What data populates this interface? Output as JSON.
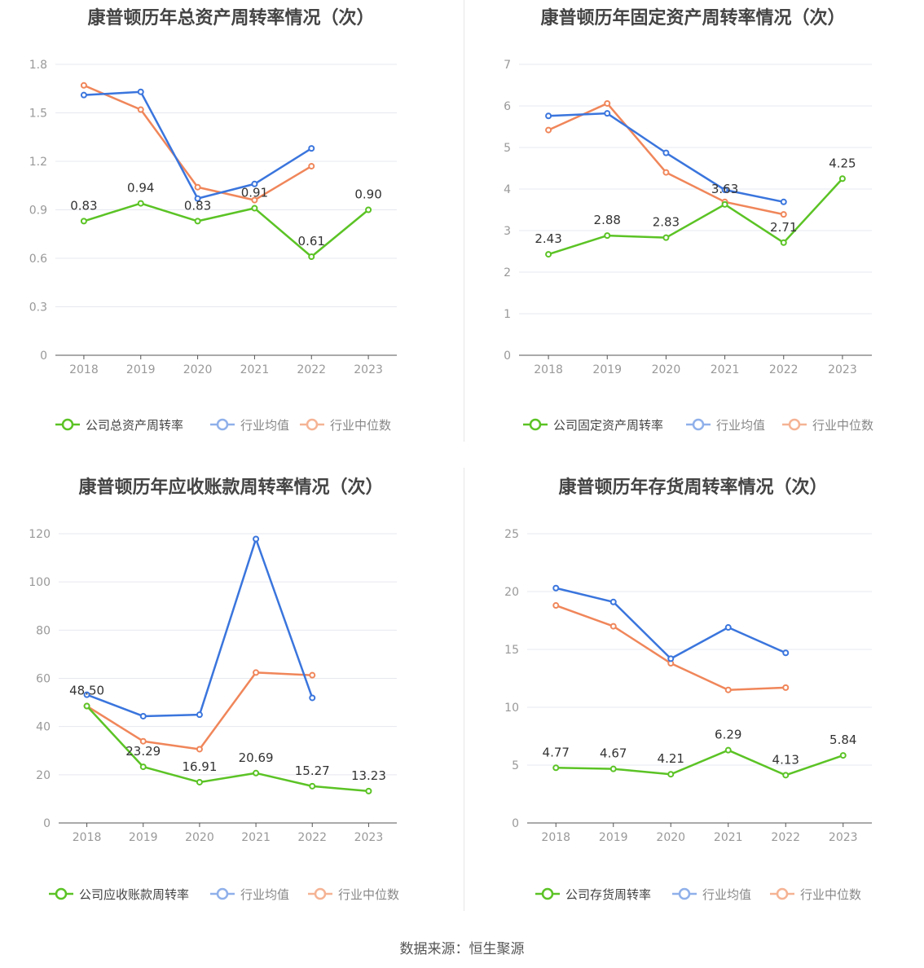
{
  "footer": "数据来源：恒生聚源",
  "colors": {
    "company": "#5bc325",
    "average": "#3a75dd",
    "median": "#f0865a",
    "axis": "#999999",
    "grid": "#e6e8f0",
    "title": "#444444"
  },
  "chart_data": [
    {
      "type": "line",
      "title": "康普顿历年总资产周转率情况（次）",
      "x": [
        "2018",
        "2019",
        "2020",
        "2021",
        "2022",
        "2023"
      ],
      "ylim": [
        0,
        1.8
      ],
      "yticks": [
        "0",
        "0.3",
        "0.6",
        "0.9",
        "1.2",
        "1.5",
        "1.8"
      ],
      "grid": true,
      "legend_placement": "bottom",
      "series": [
        {
          "name": "公司总资产周转率",
          "values": [
            0.83,
            0.94,
            0.83,
            0.91,
            0.61,
            0.9
          ],
          "labels": [
            "0.83",
            "0.94",
            "0.83",
            "0.91",
            "0.61",
            "0.90"
          ]
        },
        {
          "name": "行业均值",
          "values": [
            1.61,
            1.63,
            0.97,
            1.06,
            1.28,
            null
          ]
        },
        {
          "name": "行业中位数",
          "values": [
            1.67,
            1.52,
            1.04,
            0.96,
            1.17,
            null
          ]
        }
      ]
    },
    {
      "type": "line",
      "title": "康普顿历年固定资产周转率情况（次）",
      "x": [
        "2018",
        "2019",
        "2020",
        "2021",
        "2022",
        "2023"
      ],
      "ylim": [
        0,
        7
      ],
      "yticks": [
        "0",
        "1",
        "2",
        "3",
        "4",
        "5",
        "6",
        "7"
      ],
      "grid": true,
      "legend_placement": "bottom",
      "series": [
        {
          "name": "公司固定资产周转率",
          "values": [
            2.43,
            2.88,
            2.83,
            3.63,
            2.71,
            4.25
          ],
          "labels": [
            "2.43",
            "2.88",
            "2.83",
            "3.63",
            "2.71",
            "4.25"
          ]
        },
        {
          "name": "行业均值",
          "values": [
            5.76,
            5.82,
            4.87,
            3.98,
            3.69,
            null
          ]
        },
        {
          "name": "行业中位数",
          "values": [
            5.42,
            6.06,
            4.4,
            3.69,
            3.39,
            null
          ]
        }
      ]
    },
    {
      "type": "line",
      "title": "康普顿历年应收账款周转率情况（次）",
      "x": [
        "2018",
        "2019",
        "2020",
        "2021",
        "2022",
        "2023"
      ],
      "ylim": [
        0,
        120
      ],
      "yticks": [
        "0",
        "20",
        "40",
        "60",
        "80",
        "100",
        "120"
      ],
      "grid": true,
      "legend_placement": "bottom",
      "series": [
        {
          "name": "公司应收账款周转率",
          "values": [
            48.5,
            23.29,
            16.91,
            20.69,
            15.27,
            13.23
          ],
          "labels": [
            "48.50",
            "23.29",
            "16.91",
            "20.69",
            "15.27",
            "13.23"
          ]
        },
        {
          "name": "行业均值",
          "values": [
            53.2,
            44.3,
            44.9,
            117.8,
            51.9,
            null
          ]
        },
        {
          "name": "行业中位数",
          "values": [
            48.5,
            33.9,
            30.6,
            62.4,
            61.3,
            null
          ]
        }
      ]
    },
    {
      "type": "line",
      "title": "康普顿历年存货周转率情况（次）",
      "x": [
        "2018",
        "2019",
        "2020",
        "2021",
        "2022",
        "2023"
      ],
      "ylim": [
        0,
        25
      ],
      "yticks": [
        "0",
        "5",
        "10",
        "15",
        "20",
        "25"
      ],
      "grid": true,
      "legend_placement": "bottom",
      "series": [
        {
          "name": "公司存货周转率",
          "values": [
            4.77,
            4.67,
            4.21,
            6.29,
            4.13,
            5.84
          ],
          "labels": [
            "4.77",
            "4.67",
            "4.21",
            "6.29",
            "4.13",
            "5.84"
          ]
        },
        {
          "name": "行业均值",
          "values": [
            20.3,
            19.1,
            14.2,
            16.9,
            14.7,
            null
          ]
        },
        {
          "name": "行业中位数",
          "values": [
            18.8,
            17.0,
            13.8,
            11.5,
            11.7,
            null
          ]
        }
      ]
    }
  ]
}
